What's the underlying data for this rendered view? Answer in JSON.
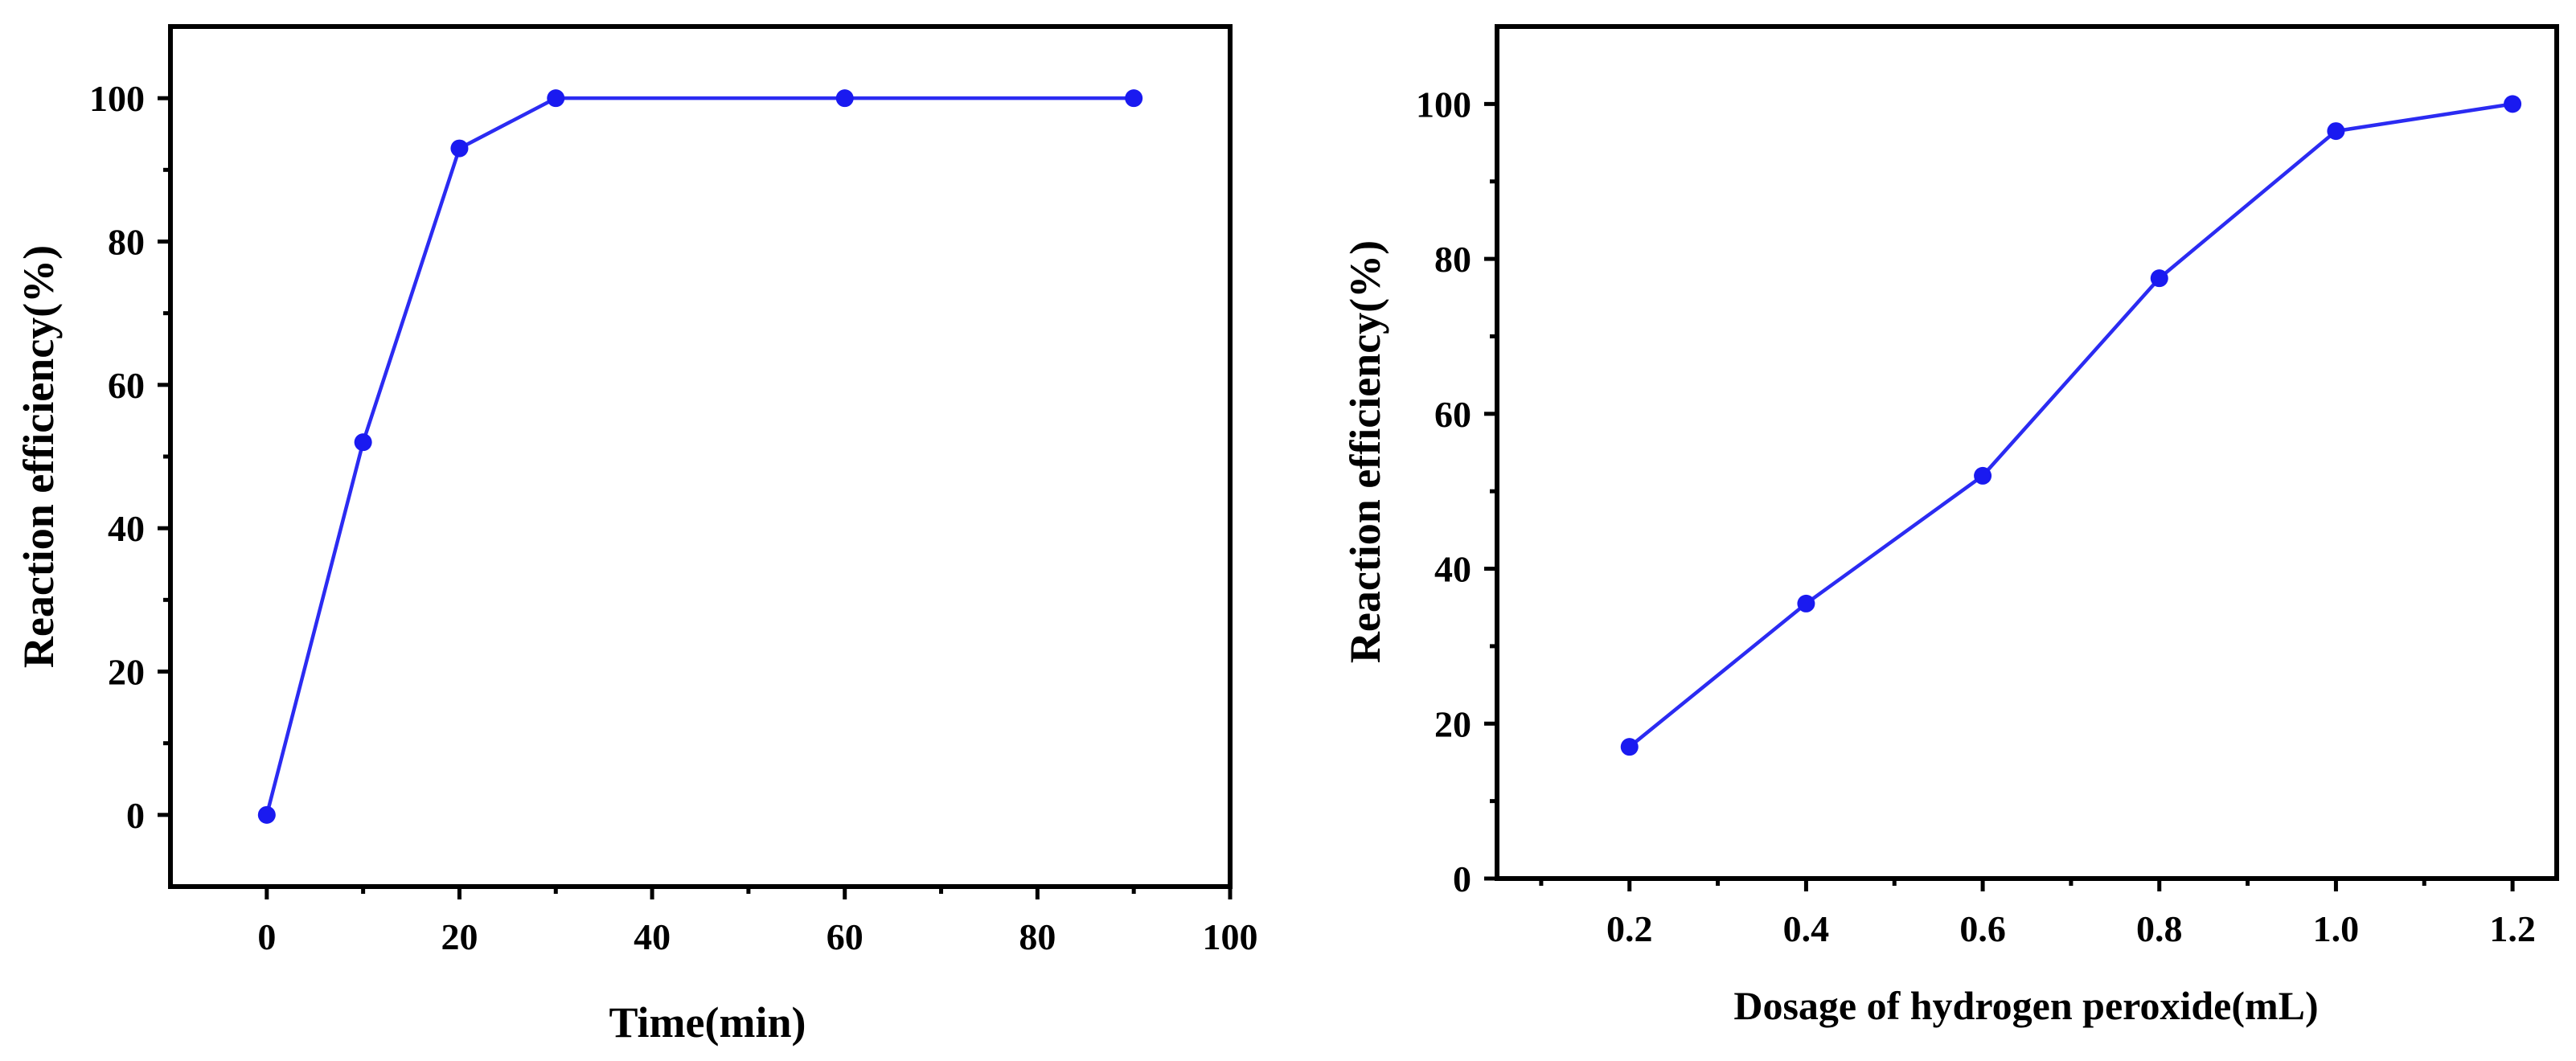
{
  "chart_data": [
    {
      "type": "line",
      "title": "",
      "xlabel": "Time(min)",
      "ylabel": "Reaction efficiency(%)",
      "xlim": [
        -10,
        100
      ],
      "ylim": [
        -10,
        110
      ],
      "xticks": [
        0,
        20,
        40,
        60,
        80,
        100
      ],
      "xtick_labels": [
        "0",
        "20",
        "40",
        "60",
        "80",
        "100"
      ],
      "yticks": [
        0,
        20,
        40,
        60,
        80,
        100
      ],
      "ytick_labels": [
        "0",
        "20",
        "40",
        "60",
        "80",
        "100"
      ],
      "x_minor_ticks": [
        10,
        30,
        50,
        70,
        90
      ],
      "y_minor_ticks": [
        10,
        30,
        50,
        70,
        90
      ],
      "grid": false,
      "series": [
        {
          "name": "Reaction efficiency",
          "color": "#2b2bf2",
          "x": [
            0,
            10,
            20,
            30,
            60,
            90
          ],
          "y": [
            0,
            52,
            93,
            100,
            100,
            100
          ]
        }
      ]
    },
    {
      "type": "line",
      "title": "",
      "xlabel": "Dosage of hydrogen peroxide(mL)",
      "ylabel": "Reaction efficiency(%)",
      "xlim": [
        0.05,
        1.25
      ],
      "ylim": [
        0,
        110
      ],
      "xticks": [
        0.2,
        0.4,
        0.6,
        0.8,
        1.0,
        1.2
      ],
      "xtick_labels": [
        "0.2",
        "0.4",
        "0.6",
        "0.8",
        "1.0",
        "1.2"
      ],
      "yticks": [
        0,
        20,
        40,
        60,
        80,
        100
      ],
      "ytick_labels": [
        "0",
        "20",
        "40",
        "60",
        "80",
        "100"
      ],
      "x_minor_ticks": [
        0.1,
        0.3,
        0.5,
        0.7,
        0.9,
        1.1
      ],
      "y_minor_ticks": [
        10,
        30,
        50,
        70,
        90
      ],
      "grid": false,
      "series": [
        {
          "name": "Reaction efficiency",
          "color": "#2b2bf2",
          "x": [
            0.2,
            0.4,
            0.6,
            0.8,
            1.0,
            1.2
          ],
          "y": [
            17,
            35.5,
            52,
            77.5,
            96.5,
            100
          ]
        }
      ]
    }
  ]
}
